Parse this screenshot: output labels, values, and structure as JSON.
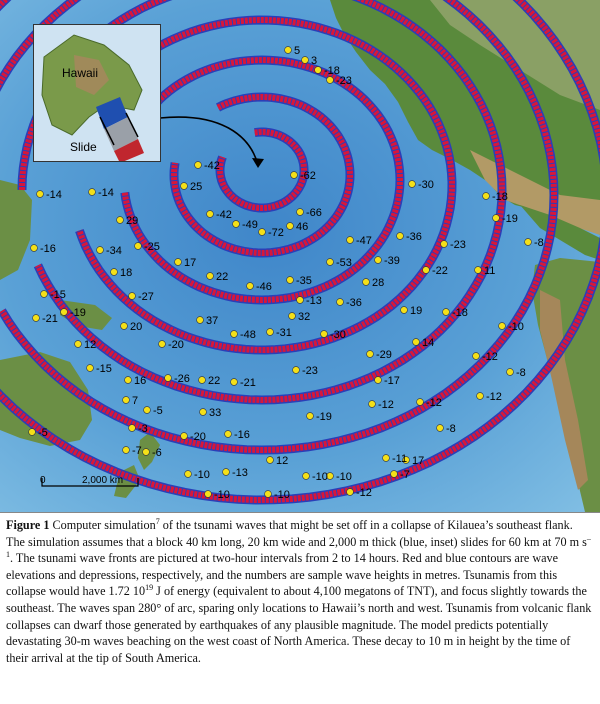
{
  "inset": {
    "island_label": "Hawaii",
    "slide_label": "Slide"
  },
  "scale_bar": {
    "start": "0",
    "end": "2,000 km"
  },
  "wave_heights": [
    "5",
    "3",
    "-18",
    "-23",
    "-30",
    "-18",
    "-19",
    "-8",
    "-62",
    "-66",
    "46",
    "-72",
    "-49",
    "-42",
    "25",
    "-42",
    "-47",
    "-36",
    "-23",
    "11",
    "-10",
    "-14",
    "-14",
    "29",
    "-25",
    "17",
    "22",
    "-46",
    "-35",
    "-53",
    "-39",
    "-22",
    "-16",
    "-34",
    "18",
    "-27",
    "-15",
    "-19",
    "-21",
    "20",
    "12",
    "-20",
    "37",
    "-48",
    "-31",
    "32",
    "-36",
    "28",
    "19",
    "-18",
    "-15",
    "16",
    "-26",
    "22",
    "-21",
    "-23",
    "-30",
    "-29",
    "14",
    "-12",
    "-8",
    "7",
    "-5",
    "33",
    "-17",
    "-12",
    "-12",
    "-5",
    "-3",
    "-6",
    "-7",
    "17",
    "-20",
    "-16",
    "-19",
    "-12",
    "-8",
    "-11",
    "-7",
    "-10",
    "-13",
    "12",
    "-10",
    "-10",
    "-12",
    "-10",
    "-10",
    "-13"
  ],
  "caption": {
    "fig_label": "Figure 1",
    "title_pre": " Computer simulation",
    "ref": "7",
    "body_1": " of the tsunami waves that might be set off in a collapse of Kilauea’s southeast flank. The simulation assumes that a block 40 km long, 20 km wide and 2,000 m thick (blue, inset) slides for 60 km at 70 m s",
    "exp_1": "–1",
    "body_2": ". The tsunami wave fronts are pictured at two-hour intervals from 2 to 14 hours. Red and blue contours are wave elevations and depressions, respectively, and the numbers are sample wave heights in metres. Tsunamis from this collapse would have 1.72 10",
    "exp_2": "19",
    "body_3": " J of energy (equivalent to about 4,100 megatons of TNT), and focus slightly towards the southeast. The waves span 280° of arc, sparing only locations to Hawaii’s north and west. Tsunamis from volcanic flank collapses can dwarf those generated by earthquakes of any plausible magnitude. The model predicts potentially devastating 30-m waves beaching on the west coast of North America. These decay to 10 m in height by the time of their arrival at the tip of South America."
  }
}
